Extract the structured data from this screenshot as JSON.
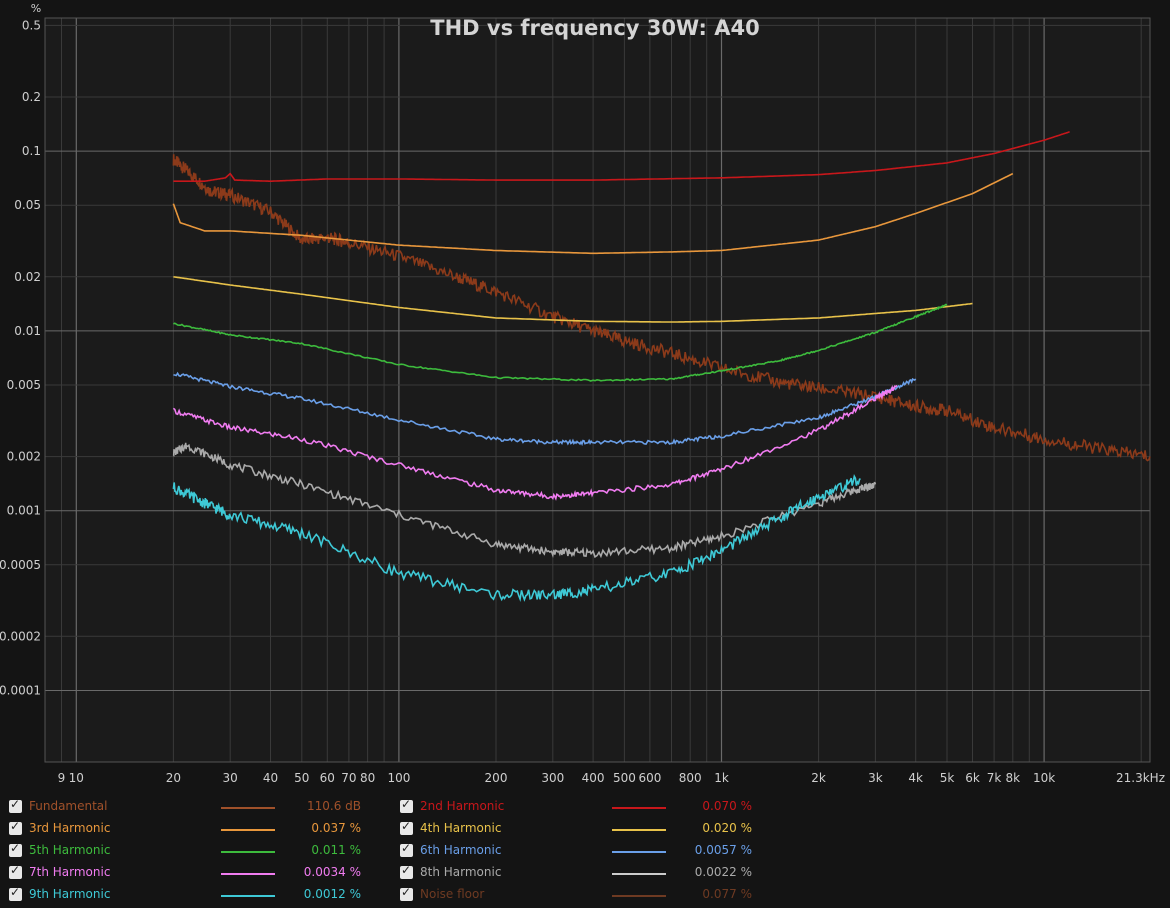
{
  "chart_data": {
    "type": "line",
    "title": "THD vs frequency 30W: A40",
    "ylabel": "%",
    "xlabel": "",
    "x_scale": "log",
    "y_scale": "log",
    "xlim": [
      8,
      21300
    ],
    "ylim": [
      4e-05,
      0.55
    ],
    "grid": true,
    "x_ticks": [
      {
        "value": 9,
        "label": "9"
      },
      {
        "value": 10,
        "label": "10"
      },
      {
        "value": 20,
        "label": "20"
      },
      {
        "value": 30,
        "label": "30"
      },
      {
        "value": 40,
        "label": "40"
      },
      {
        "value": 50,
        "label": "50"
      },
      {
        "value": 60,
        "label": "60"
      },
      {
        "value": 70,
        "label": "70"
      },
      {
        "value": 80,
        "label": "80"
      },
      {
        "value": 100,
        "label": "100"
      },
      {
        "value": 200,
        "label": "200"
      },
      {
        "value": 300,
        "label": "300"
      },
      {
        "value": 400,
        "label": "400"
      },
      {
        "value": 500,
        "label": "500"
      },
      {
        "value": 600,
        "label": "600"
      },
      {
        "value": 800,
        "label": "800"
      },
      {
        "value": 1000,
        "label": "1k"
      },
      {
        "value": 2000,
        "label": "2k"
      },
      {
        "value": 3000,
        "label": "3k"
      },
      {
        "value": 4000,
        "label": "4k"
      },
      {
        "value": 5000,
        "label": "5k"
      },
      {
        "value": 6000,
        "label": "6k"
      },
      {
        "value": 7000,
        "label": "7k"
      },
      {
        "value": 8000,
        "label": "8k"
      },
      {
        "value": 10000,
        "label": "10k"
      },
      {
        "value": 21300,
        "label": "21.3kHz"
      }
    ],
    "y_ticks": [
      {
        "value": 0.5,
        "label": "0.5"
      },
      {
        "value": 0.2,
        "label": "0.2"
      },
      {
        "value": 0.1,
        "label": "0.1"
      },
      {
        "value": 0.05,
        "label": "0.05"
      },
      {
        "value": 0.02,
        "label": "0.02"
      },
      {
        "value": 0.01,
        "label": "0.01"
      },
      {
        "value": 0.005,
        "label": "0.005"
      },
      {
        "value": 0.002,
        "label": "0.002"
      },
      {
        "value": 0.001,
        "label": "0.001"
      },
      {
        "value": 0.0005,
        "label": "0.0005"
      },
      {
        "value": 0.0002,
        "label": "0.0002"
      },
      {
        "value": 0.0001,
        "label": "0.0001"
      }
    ],
    "series": [
      {
        "name": "Noise floor",
        "color": "#8b3a1a",
        "x": [
          20,
          22,
          26,
          30,
          40,
          50,
          60,
          70,
          100,
          150,
          200,
          300,
          400,
          500,
          700,
          1000,
          1500,
          2000,
          3000,
          4000,
          5000,
          7000,
          10000,
          15000,
          21300
        ],
        "y": [
          0.09,
          0.078,
          0.06,
          0.057,
          0.046,
          0.032,
          0.033,
          0.031,
          0.026,
          0.02,
          0.0165,
          0.012,
          0.01,
          0.0088,
          0.0075,
          0.0062,
          0.0052,
          0.0048,
          0.0043,
          0.0038,
          0.0036,
          0.0029,
          0.0025,
          0.0022,
          0.002
        ]
      },
      {
        "name": "2nd Harmonic",
        "color": "#c8171b",
        "x": [
          20,
          25,
          29,
          30,
          31,
          40,
          60,
          100,
          200,
          400,
          1000,
          2000,
          3000,
          5000,
          7000,
          10000,
          12000
        ],
        "y": [
          0.068,
          0.068,
          0.071,
          0.075,
          0.069,
          0.068,
          0.07,
          0.07,
          0.069,
          0.069,
          0.071,
          0.074,
          0.078,
          0.086,
          0.097,
          0.115,
          0.128
        ]
      },
      {
        "name": "3rd Harmonic",
        "color": "#e8973c",
        "x": [
          20,
          21,
          25,
          30,
          50,
          100,
          200,
          400,
          700,
          1000,
          2000,
          3000,
          4000,
          6000,
          8000
        ],
        "y": [
          0.051,
          0.04,
          0.036,
          0.036,
          0.034,
          0.03,
          0.028,
          0.027,
          0.0275,
          0.028,
          0.032,
          0.038,
          0.045,
          0.058,
          0.075
        ]
      },
      {
        "name": "4th Harmonic",
        "color": "#e8c24a",
        "x": [
          20,
          30,
          50,
          100,
          200,
          400,
          700,
          1000,
          2000,
          3000,
          4000,
          6000
        ],
        "y": [
          0.02,
          0.018,
          0.016,
          0.0135,
          0.0118,
          0.0113,
          0.0112,
          0.0113,
          0.0118,
          0.0125,
          0.013,
          0.0142
        ]
      },
      {
        "name": "5th Harmonic",
        "color": "#3dbb3d",
        "x": [
          20,
          30,
          50,
          100,
          200,
          400,
          700,
          1000,
          1500,
          2000,
          3000,
          4000,
          5000
        ],
        "y": [
          0.011,
          0.0095,
          0.0085,
          0.0065,
          0.0055,
          0.0053,
          0.0054,
          0.006,
          0.0068,
          0.0078,
          0.0098,
          0.012,
          0.014
        ]
      },
      {
        "name": "6th Harmonic",
        "color": "#6a9fe8",
        "x": [
          20,
          30,
          50,
          100,
          200,
          300,
          400,
          700,
          1000,
          2000,
          3000,
          4000
        ],
        "y": [
          0.0058,
          0.0049,
          0.0042,
          0.0032,
          0.0025,
          0.0024,
          0.0024,
          0.0024,
          0.0026,
          0.0033,
          0.0043,
          0.0054
        ]
      },
      {
        "name": "7th Harmonic",
        "color": "#f07cf0",
        "x": [
          20,
          30,
          50,
          100,
          200,
          300,
          400,
          700,
          1000,
          2000,
          3000,
          3500
        ],
        "y": [
          0.0036,
          0.0029,
          0.0025,
          0.0018,
          0.0013,
          0.0012,
          0.00125,
          0.0014,
          0.0017,
          0.0028,
          0.0042,
          0.0049
        ]
      },
      {
        "name": "8th Harmonic",
        "color": "#aaaaaa",
        "x": [
          20,
          22,
          30,
          50,
          100,
          200,
          300,
          400,
          700,
          1000,
          2000,
          2600,
          3000
        ],
        "y": [
          0.0021,
          0.0023,
          0.0018,
          0.0014,
          0.00095,
          0.00065,
          0.00059,
          0.00058,
          0.00062,
          0.00072,
          0.0011,
          0.0013,
          0.0014
        ]
      },
      {
        "name": "9th Harmonic",
        "color": "#3ec9d6",
        "x": [
          20,
          25,
          30,
          50,
          100,
          200,
          300,
          400,
          700,
          1000,
          1500,
          2000,
          2700
        ],
        "y": [
          0.00135,
          0.0011,
          0.00095,
          0.00075,
          0.00045,
          0.00034,
          0.00034,
          0.00036,
          0.00045,
          0.0006,
          0.0009,
          0.0012,
          0.0015
        ]
      }
    ]
  },
  "legend": {
    "items": [
      {
        "name": "Fundamental",
        "value": "110.6 dB",
        "color": "#a0512a",
        "swatch": "#a0512a"
      },
      {
        "name": "2nd Harmonic",
        "value": "0.070 %",
        "color": "#c8171b",
        "swatch": "#c8171b"
      },
      {
        "name": "3rd Harmonic",
        "value": "0.037 %",
        "color": "#e8973c",
        "swatch": "#e8973c"
      },
      {
        "name": "4th Harmonic",
        "value": "0.020 %",
        "color": "#e8c24a",
        "swatch": "#e8c24a"
      },
      {
        "name": "5th Harmonic",
        "value": "0.011 %",
        "color": "#3dbb3d",
        "swatch": "#3dbb3d"
      },
      {
        "name": "6th Harmonic",
        "value": "0.0057 %",
        "color": "#6a9fe8",
        "swatch": "#6a9fe8"
      },
      {
        "name": "7th Harmonic",
        "value": "0.0034 %",
        "color": "#f07cf0",
        "swatch": "#f07cf0"
      },
      {
        "name": "8th Harmonic",
        "value": "0.0022 %",
        "color": "#aaaaaa",
        "swatch": "#cccccc"
      },
      {
        "name": "9th Harmonic",
        "value": "0.0012 %",
        "color": "#3ec9d6",
        "swatch": "#3ec9d6"
      },
      {
        "name": "Noise floor",
        "value": "0.077 %",
        "color": "#6e3a22",
        "swatch": "#6e3a22"
      }
    ]
  }
}
